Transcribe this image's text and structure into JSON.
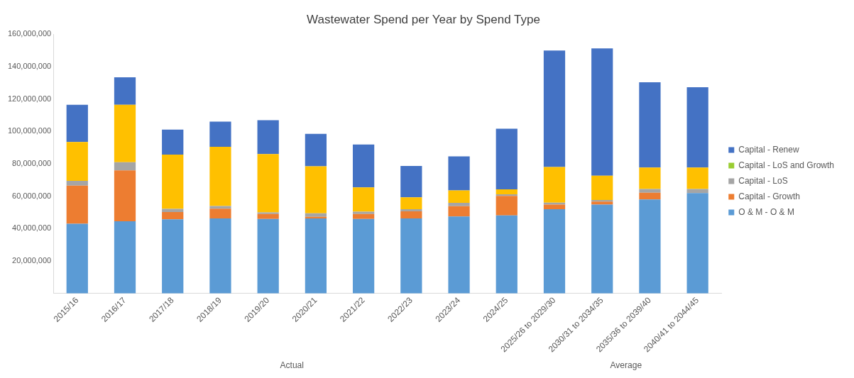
{
  "chart_data": {
    "type": "bar",
    "stacked": true,
    "title": "Wastewater Spend per Year by Spend Type",
    "categories": [
      "2015/16",
      "2016/17",
      "2017/18",
      "2018/19",
      "2019/20",
      "2020/21",
      "2021/22",
      "2022/23",
      "2023/24",
      "2024/25",
      "2025/26 to 2029/30",
      "2030/31 to 2034/35",
      "2035/36 to 2039/40",
      "2040/41 to 2044/45"
    ],
    "series": [
      {
        "name": "O & M - O & M",
        "color": "#5b9bd5",
        "values": [
          43000000,
          44500000,
          45700000,
          46300000,
          46000000,
          46300000,
          46000000,
          46300000,
          47500000,
          48200000,
          52000000,
          54800000,
          58000000,
          62000000
        ]
      },
      {
        "name": "Capital - Growth",
        "color": "#ed7d31",
        "values": [
          23500000,
          31500000,
          4500000,
          6000000,
          3000000,
          1000000,
          3000000,
          4400000,
          6400000,
          12000000,
          2800000,
          1900000,
          4200000,
          0
        ]
      },
      {
        "name": "Capital - LoS",
        "color": "#a5a5a5",
        "values": [
          3000000,
          5000000,
          2000000,
          1700000,
          1000000,
          2200000,
          1500000,
          1300000,
          2000000,
          1000000,
          1200000,
          1000000,
          2300000,
          2500000
        ]
      },
      {
        "name": "Capital - LoS and Growth",
        "color": "#9acd32",
        "values": [
          0,
          0,
          0,
          0,
          0,
          0,
          0,
          0,
          0,
          0,
          0,
          0,
          0,
          0
        ]
      },
      {
        "color": "#ffc000",
        "values": [
          24000000,
          35500000,
          33500000,
          36500000,
          36000000,
          29000000,
          15000000,
          7300000,
          7700000,
          3000000,
          22000000,
          15000000,
          13200000,
          13200000
        ]
      },
      {
        "name": "Capital - Renew",
        "color": "#4472c4",
        "values": [
          23000000,
          17000000,
          15500000,
          15600000,
          21000000,
          20000000,
          26500000,
          19400000,
          21000000,
          37500000,
          72000000,
          78600000,
          52700000,
          49600000
        ]
      }
    ],
    "ylim": [
      0,
      160000000
    ],
    "yticks": [
      {
        "value": 0,
        "label": null
      },
      {
        "value": 20000000,
        "label": "20,000,000"
      },
      {
        "value": 40000000,
        "label": "40,000,000"
      },
      {
        "value": 60000000,
        "label": "60,000,000"
      },
      {
        "value": 80000000,
        "label": "80,000,000"
      },
      {
        "value": 100000000,
        "label": "100,000,000"
      },
      {
        "value": 120000000,
        "label": "120,000,000"
      },
      {
        "value": 140000000,
        "label": "140,000,000"
      },
      {
        "value": 160000000,
        "label": "160,000,000"
      }
    ],
    "legend": "right",
    "annotations": [
      "Actual",
      "Average"
    ]
  }
}
